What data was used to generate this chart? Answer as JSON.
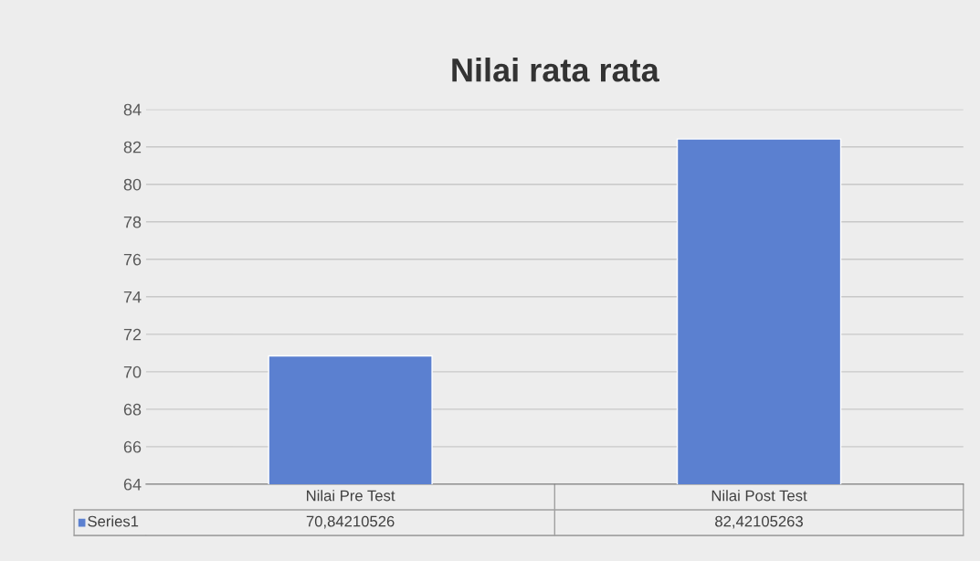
{
  "chart_data": {
    "type": "bar",
    "title": "Nilai rata rata",
    "categories": [
      "Nilai Pre Test",
      "Nilai Post Test"
    ],
    "series": [
      {
        "name": "Series1",
        "color": "#5b80d0",
        "values": [
          70.84210526,
          82.42105263
        ],
        "value_labels": [
          "70,84210526",
          "82,42105263"
        ]
      }
    ],
    "ylim": [
      64,
      84
    ],
    "yticks": [
      64,
      66,
      68,
      70,
      72,
      74,
      76,
      78,
      80,
      82,
      84
    ],
    "grid": "y",
    "legend": "bottom left"
  }
}
